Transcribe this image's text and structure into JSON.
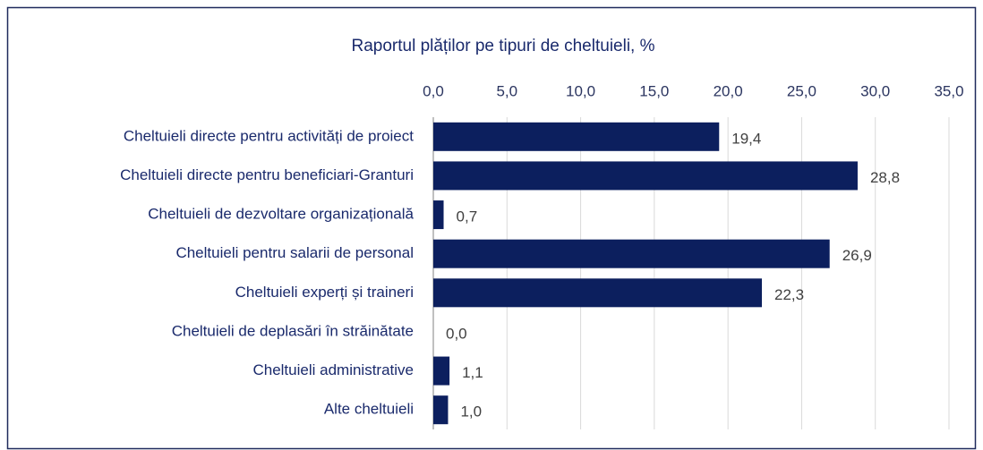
{
  "chart_data": {
    "type": "hbar",
    "title": "Raportul plăților pe tipuri de cheltuieli, %",
    "categories": [
      "Cheltuieli directe pentru activități de proiect",
      "Cheltuieli directe pentru beneficiari-Granturi",
      "Cheltuieli de dezvoltare organizațională",
      "Cheltuieli pentru salarii de personal",
      "Cheltuieli experți și traineri",
      "Cheltuieli de deplasări în străinătate",
      "Cheltuieli administrative",
      "Alte cheltuieli"
    ],
    "values": [
      19.4,
      28.8,
      0.7,
      26.9,
      22.3,
      0.0,
      1.1,
      1.0
    ],
    "value_labels": [
      "19,4",
      "28,8",
      "0,7",
      "26,9",
      "22,3",
      "0,0",
      "1,1",
      "1,0"
    ],
    "color": "#0c1f5e",
    "xlim": [
      0,
      35
    ],
    "xticks": [
      {
        "value": 0,
        "label": "0,0"
      },
      {
        "value": 5,
        "label": "5,0"
      },
      {
        "value": 10,
        "label": "10,0"
      },
      {
        "value": 15,
        "label": "15,0"
      },
      {
        "value": 20,
        "label": "20,0"
      },
      {
        "value": 25,
        "label": "25,0"
      },
      {
        "value": 30,
        "label": "30,0"
      },
      {
        "value": 35,
        "label": "35,0"
      }
    ],
    "grid": true
  }
}
